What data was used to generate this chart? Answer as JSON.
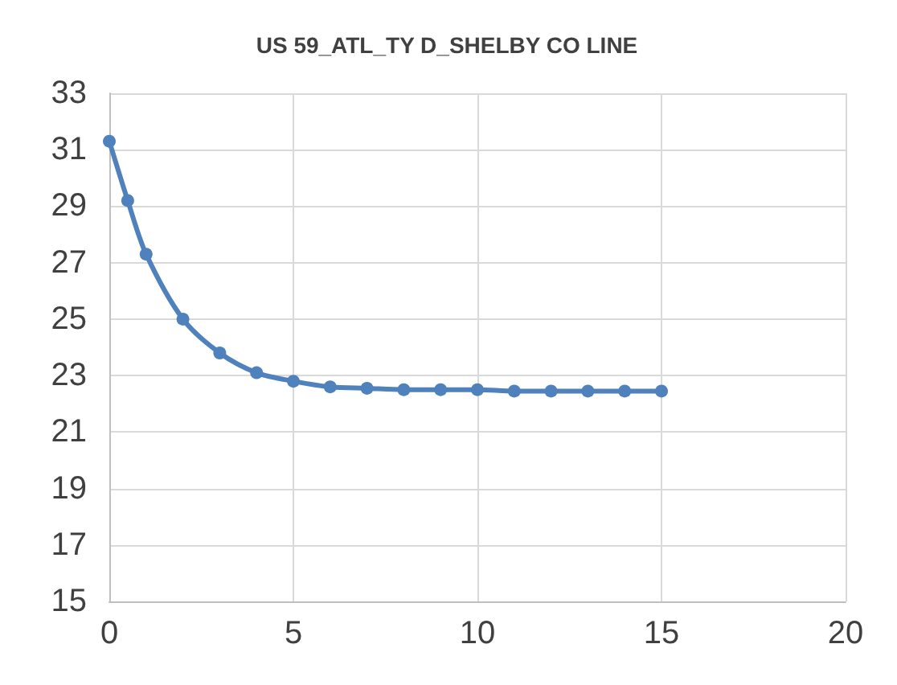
{
  "chart_data": {
    "type": "line",
    "title": "US 59_ATL_TY D_SHELBY CO LINE",
    "x": [
      0,
      0.5,
      1,
      2,
      3,
      4,
      5,
      6,
      7,
      8,
      9,
      10,
      11,
      12,
      13,
      14,
      15
    ],
    "series": [
      {
        "color": "#4f81bd",
        "values": [
          31.3,
          29.2,
          27.3,
          25.0,
          23.8,
          23.1,
          22.8,
          22.6,
          22.55,
          22.5,
          22.5,
          22.5,
          22.45,
          22.45,
          22.45,
          22.45,
          22.45
        ]
      }
    ],
    "xlim": [
      0,
      20
    ],
    "xticks": [
      0,
      5,
      10,
      15,
      20
    ],
    "ylim": [
      15,
      33
    ],
    "yticks": [
      15,
      17,
      19,
      21,
      23,
      25,
      27,
      29,
      31,
      33
    ],
    "grid": true,
    "marker": "circle",
    "line_style": "solid"
  }
}
